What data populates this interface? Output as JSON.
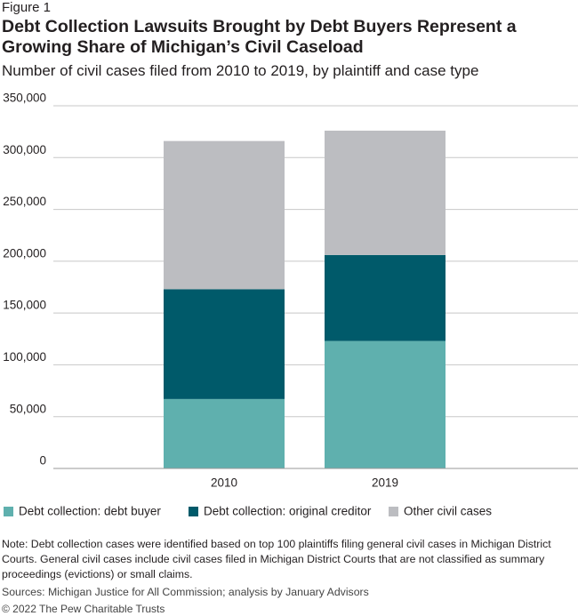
{
  "figure_label": "Figure 1",
  "chart_data": {
    "type": "stacked_bar",
    "title": "Debt Collection Lawsuits Brought by Debt Buyers Represent a Growing Share of Michigan’s Civil Caseload",
    "subtitle": "Number of civil cases filed from 2010 to 2019, by plaintiff and case type",
    "categories": [
      "2010",
      "2019"
    ],
    "series": [
      {
        "name": "Debt collection: debt buyer",
        "color": "#5fb0ae",
        "values": [
          67000,
          123000
        ]
      },
      {
        "name": "Debt collection: original creditor",
        "color": "#005a6a",
        "values": [
          106000,
          83000
        ]
      },
      {
        "name": "Other civil cases",
        "color": "#bcbdc1",
        "values": [
          143000,
          120000
        ]
      }
    ],
    "ylim": [
      0,
      350000
    ],
    "yticks": [
      0,
      {
        "value": 50000,
        "label": "50,000"
      },
      {
        "value": 100000,
        "label": "100,000"
      },
      {
        "value": 150000,
        "label": "150,000"
      },
      {
        "value": 200000,
        "label": "200,000"
      },
      {
        "value": 250000,
        "label": "250,000"
      },
      {
        "value": 300000,
        "label": "300,000"
      },
      {
        "value": 350000,
        "label": "350,000"
      }
    ],
    "grid": true,
    "legend": "bottom"
  },
  "note": "Note: Debt collection cases were identified based on top 100 plaintiffs filing general civil cases in Michigan District Courts. General civil cases include civil cases filed in Michigan District Courts that are not classified as summary proceedings (evictions) or small claims.",
  "sources": "Sources: Michigan Justice for All Commission; analysis by January Advisors",
  "copyright": "© 2022 The Pew Charitable Trusts"
}
